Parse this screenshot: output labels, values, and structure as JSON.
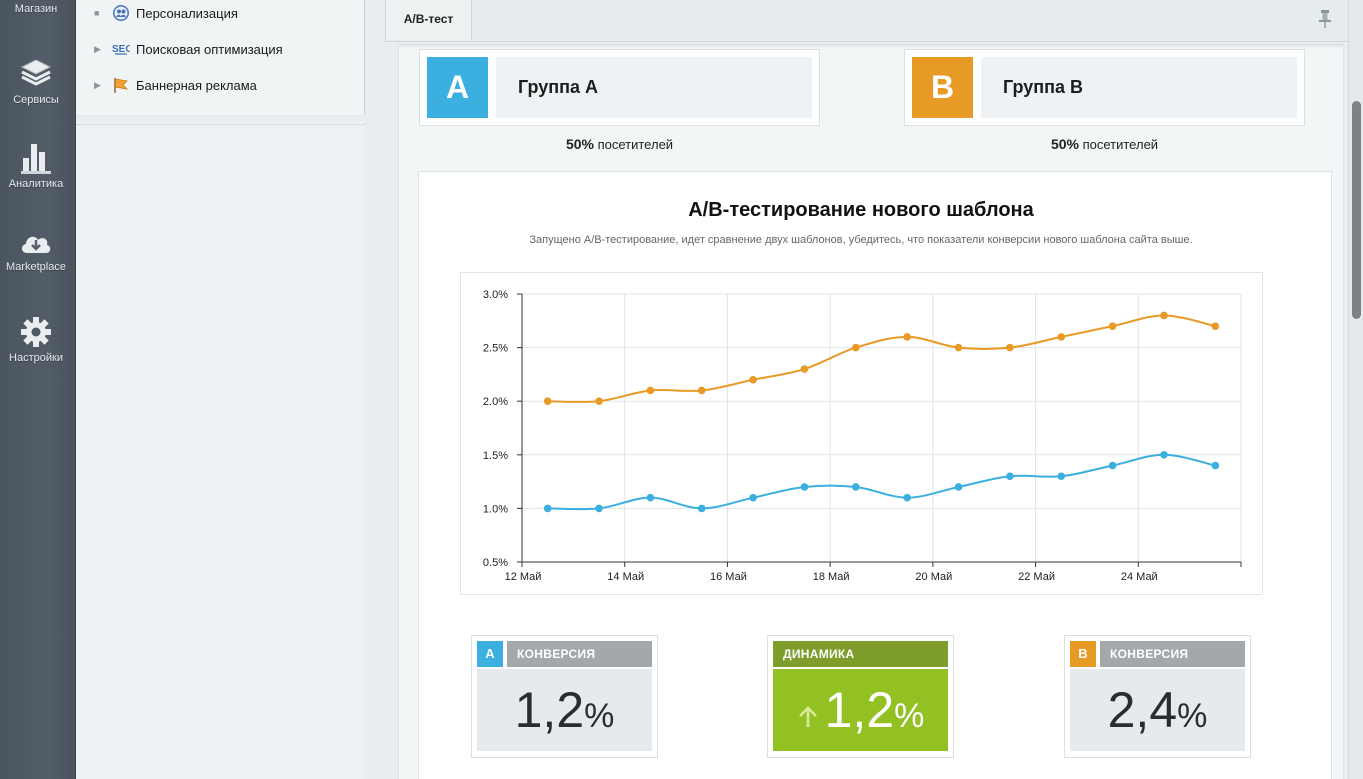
{
  "rail": {
    "items": [
      {
        "label": "Магазин",
        "icon": "store-icon"
      },
      {
        "label": "Сервисы",
        "icon": "layers-icon"
      },
      {
        "label": "Аналитика",
        "icon": "bar-chart-icon"
      },
      {
        "label": "Marketplace",
        "icon": "cloud-download-icon"
      },
      {
        "label": "Настройки",
        "icon": "gear-icon"
      }
    ]
  },
  "tree": {
    "items": [
      {
        "label": "Персонализация",
        "icon": "personalization-icon"
      },
      {
        "label": "Поисковая оптимизация",
        "icon": "seo-icon"
      },
      {
        "label": "Баннерная реклама",
        "icon": "banner-flag-icon"
      }
    ]
  },
  "tabs": {
    "active": "A/B-тест"
  },
  "groups": [
    {
      "letter": "A",
      "name": "Группа А",
      "share_value": "50%",
      "share_label": "посетителей",
      "color": "#3aafe0"
    },
    {
      "letter": "B",
      "name": "Группа В",
      "share_value": "50%",
      "share_label": "посетителей",
      "color": "#e89a26"
    }
  ],
  "chart_panel": {
    "title": "A/B-тестирование нового шаблона",
    "subtitle": "Запущено A/B-тестирование, идет сравнение двух шаблонов, убедитесь, что показатели конверсии нового шаблона сайта выше."
  },
  "chart_data": {
    "type": "line",
    "x": [
      "12 Май",
      "13 Май",
      "14 Май",
      "15 Май",
      "16 Май",
      "17 Май",
      "18 Май",
      "19 Май",
      "20 Май",
      "21 Май",
      "22 Май",
      "23 Май",
      "24 Май",
      "25 Май"
    ],
    "x_tick_labels": [
      "12 Май",
      "14 Май",
      "16 Май",
      "18 Май",
      "20 Май",
      "22 Май",
      "24 Май"
    ],
    "y_tick_labels": [
      "3.0%",
      "2.5%",
      "2.0%",
      "1.5%",
      "1.0%",
      "0.5%"
    ],
    "ylim": [
      0.5,
      3.0
    ],
    "grid": true,
    "series": [
      {
        "values": [
          2.0,
          2.0,
          2.1,
          2.1,
          2.2,
          2.3,
          2.5,
          2.6,
          2.5,
          2.5,
          2.6,
          2.7,
          2.8,
          2.7
        ],
        "color": "#e89a26"
      },
      {
        "values": [
          1.0,
          1.0,
          1.1,
          1.0,
          1.1,
          1.2,
          1.2,
          1.1,
          1.2,
          1.3,
          1.3,
          1.4,
          1.5,
          1.4
        ],
        "color": "#3aafe0"
      }
    ]
  },
  "stats": [
    {
      "badge": "A",
      "header": "КОНВЕРСИЯ",
      "value": "1,2",
      "unit": "%",
      "badge_color": "#3aafe0"
    },
    {
      "header": "ДИНАМИКА",
      "value": "1,2",
      "unit": "%",
      "arrow": "arrow-up-icon",
      "color": "#93c022"
    },
    {
      "badge": "B",
      "header": "КОНВЕРСИЯ",
      "value": "2,4",
      "unit": "%",
      "badge_color": "#e89a26"
    }
  ]
}
